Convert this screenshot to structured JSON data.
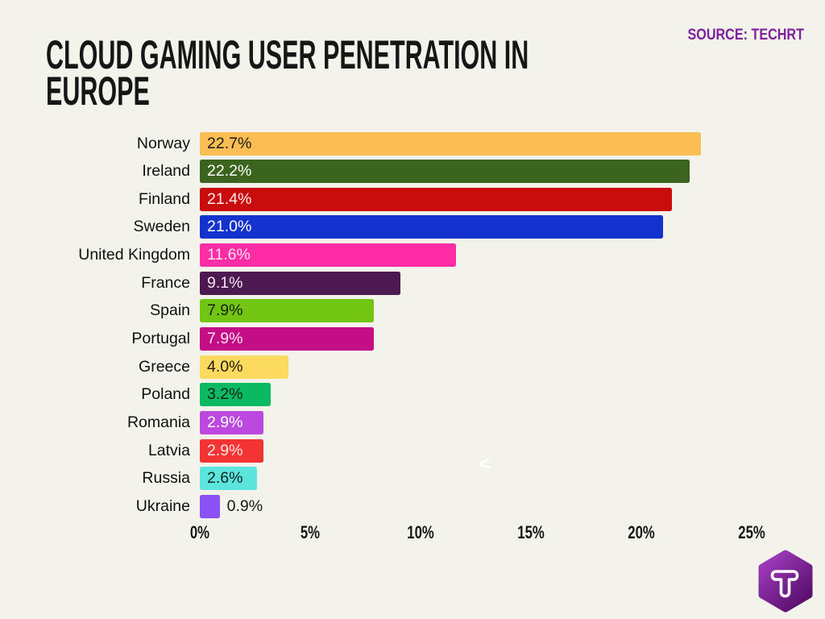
{
  "page": {
    "background": "#F3F3EC"
  },
  "header": {
    "title_lines": [
      "CLOUD GAMING USER PENETRATION IN",
      "EUROPE"
    ],
    "source": "SOURCE: TECHRT",
    "source_color": "#7E209D"
  },
  "chart_data": {
    "type": "bar",
    "orientation": "horizontal",
    "title": "CLOUD GAMING USER PENETRATION IN EUROPE",
    "xlabel": "",
    "ylabel": "",
    "xlim": [
      0,
      25
    ],
    "grid": false,
    "x_ticks": [
      "0%",
      "5%",
      "10%",
      "15%",
      "20%",
      "25%"
    ],
    "x_tick_values": [
      0,
      5,
      10,
      15,
      20,
      25
    ],
    "categories": [
      "Norway",
      "Ireland",
      "Finland",
      "Sweden",
      "United Kingdom",
      "France",
      "Spain",
      "Portugal",
      "Greece",
      "Poland",
      "Romania",
      "Latvia",
      "Russia",
      "Ukraine"
    ],
    "values": [
      22.7,
      22.2,
      21.4,
      21.0,
      11.6,
      9.1,
      7.9,
      7.9,
      4.0,
      3.2,
      2.9,
      2.9,
      2.6,
      0.9
    ],
    "bars": [
      {
        "country": "Norway",
        "value": 22.7,
        "label": "22.7%",
        "color": "#FBBE55",
        "label_color": "#1E1A10",
        "label_inside": true
      },
      {
        "country": "Ireland",
        "value": 22.2,
        "label": "22.2%",
        "color": "#3B651F",
        "label_color": "#FFFFFF",
        "label_inside": true
      },
      {
        "country": "Finland",
        "value": 21.4,
        "label": "21.4%",
        "color": "#C90D0D",
        "label_color": "#FFEDED",
        "label_inside": true
      },
      {
        "country": "Sweden",
        "value": 21.0,
        "label": "21.0%",
        "color": "#1433CE",
        "label_color": "#FFFFFF",
        "label_inside": true
      },
      {
        "country": "United Kingdom",
        "value": 11.6,
        "label": "11.6%",
        "color": "#FE2CA5",
        "label_color": "#FFDEF0",
        "label_inside": true
      },
      {
        "country": "France",
        "value": 9.1,
        "label": "9.1%",
        "color": "#4C1951",
        "label_color": "#F6E6EF",
        "label_inside": true
      },
      {
        "country": "Spain",
        "value": 7.9,
        "label": "7.9%",
        "color": "#72C513",
        "label_color": "#15210B",
        "label_inside": true
      },
      {
        "country": "Portugal",
        "value": 7.9,
        "label": "7.9%",
        "color": "#C30E86",
        "label_color": "#FFE2F2",
        "label_inside": true
      },
      {
        "country": "Greece",
        "value": 4.0,
        "label": "4.0%",
        "color": "#FCD95F",
        "label_color": "#1E1A10",
        "label_inside": true
      },
      {
        "country": "Poland",
        "value": 3.2,
        "label": "3.2%",
        "color": "#0CB963",
        "label_color": "#10231A",
        "label_inside": true
      },
      {
        "country": "Romania",
        "value": 2.9,
        "label": "2.9%",
        "color": "#BC48E0",
        "label_color": "#FFFFFF",
        "label_inside": true
      },
      {
        "country": "Latvia",
        "value": 2.9,
        "label": "2.9%",
        "color": "#F23434",
        "label_color": "#FFE3E3",
        "label_inside": true
      },
      {
        "country": "Russia",
        "value": 2.6,
        "label": "2.6%",
        "color": "#5CE5DC",
        "label_color": "#132423",
        "label_inside": true
      },
      {
        "country": "Ukraine",
        "value": 0.9,
        "label": "0.9%",
        "color": "#8B51F5",
        "label_color": "#161616",
        "label_inside": false
      }
    ]
  },
  "watermark": {
    "glyph": "<"
  },
  "logo": {
    "letter": "T",
    "gradient_top": "#A83FC4",
    "gradient_bottom": "#560E6B"
  }
}
